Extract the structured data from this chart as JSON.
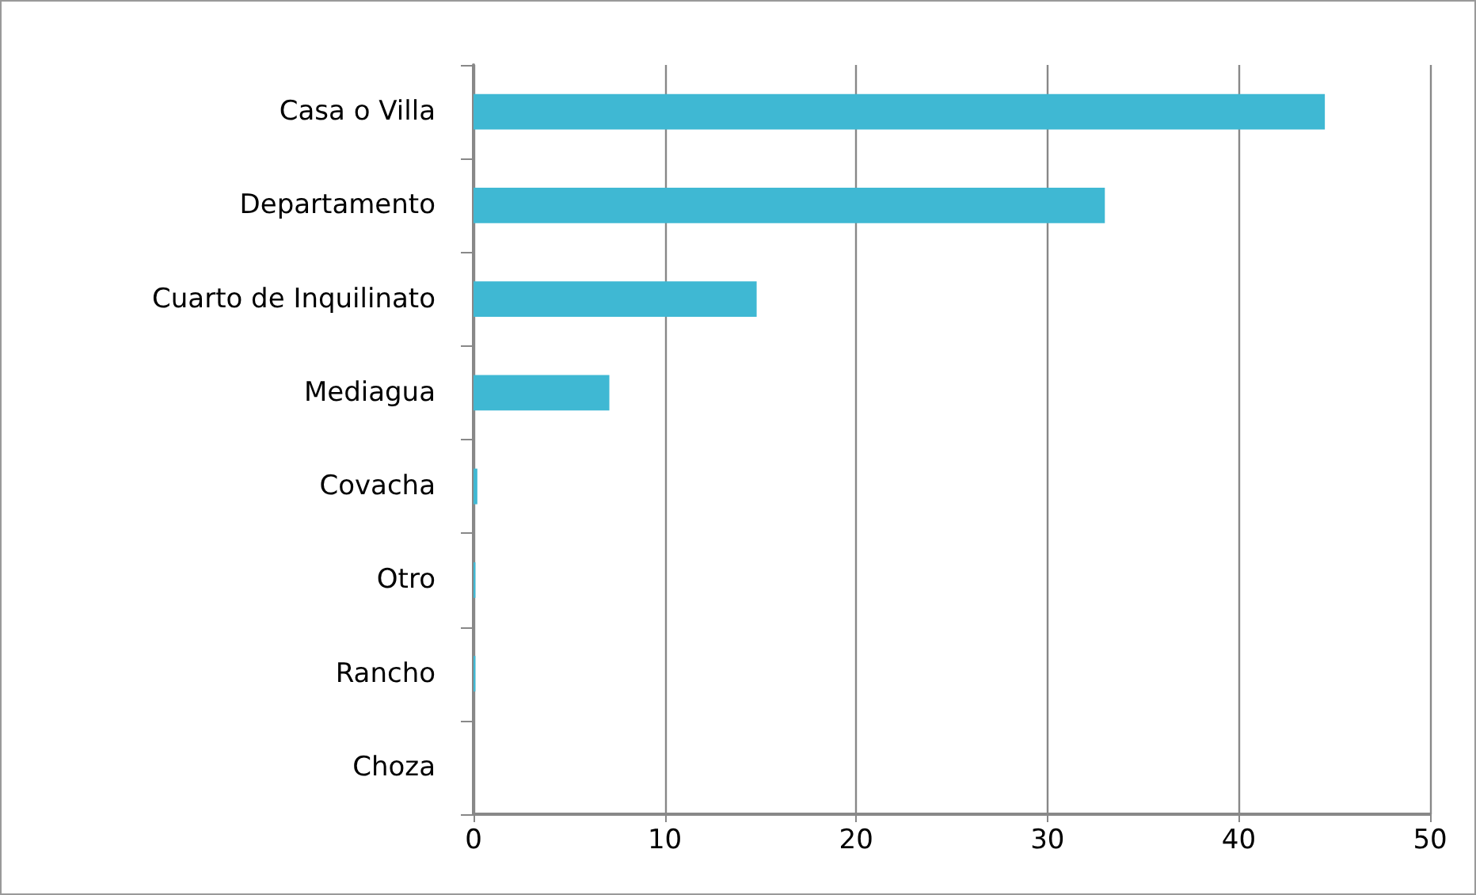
{
  "chart_data": {
    "type": "bar",
    "orientation": "horizontal",
    "categories": [
      "Casa o Villa",
      "Departamento",
      "Cuarto de Inquilinato",
      "Mediagua",
      "Covacha",
      "Otro",
      "Rancho",
      "Choza"
    ],
    "values": [
      44.5,
      33,
      14.8,
      7.1,
      0.2,
      0.1,
      0.1,
      0
    ],
    "color": "#3fb8d3",
    "xlim": [
      0,
      50
    ],
    "xticks": [
      0,
      10,
      20,
      30,
      40,
      50
    ],
    "grid": "x"
  }
}
